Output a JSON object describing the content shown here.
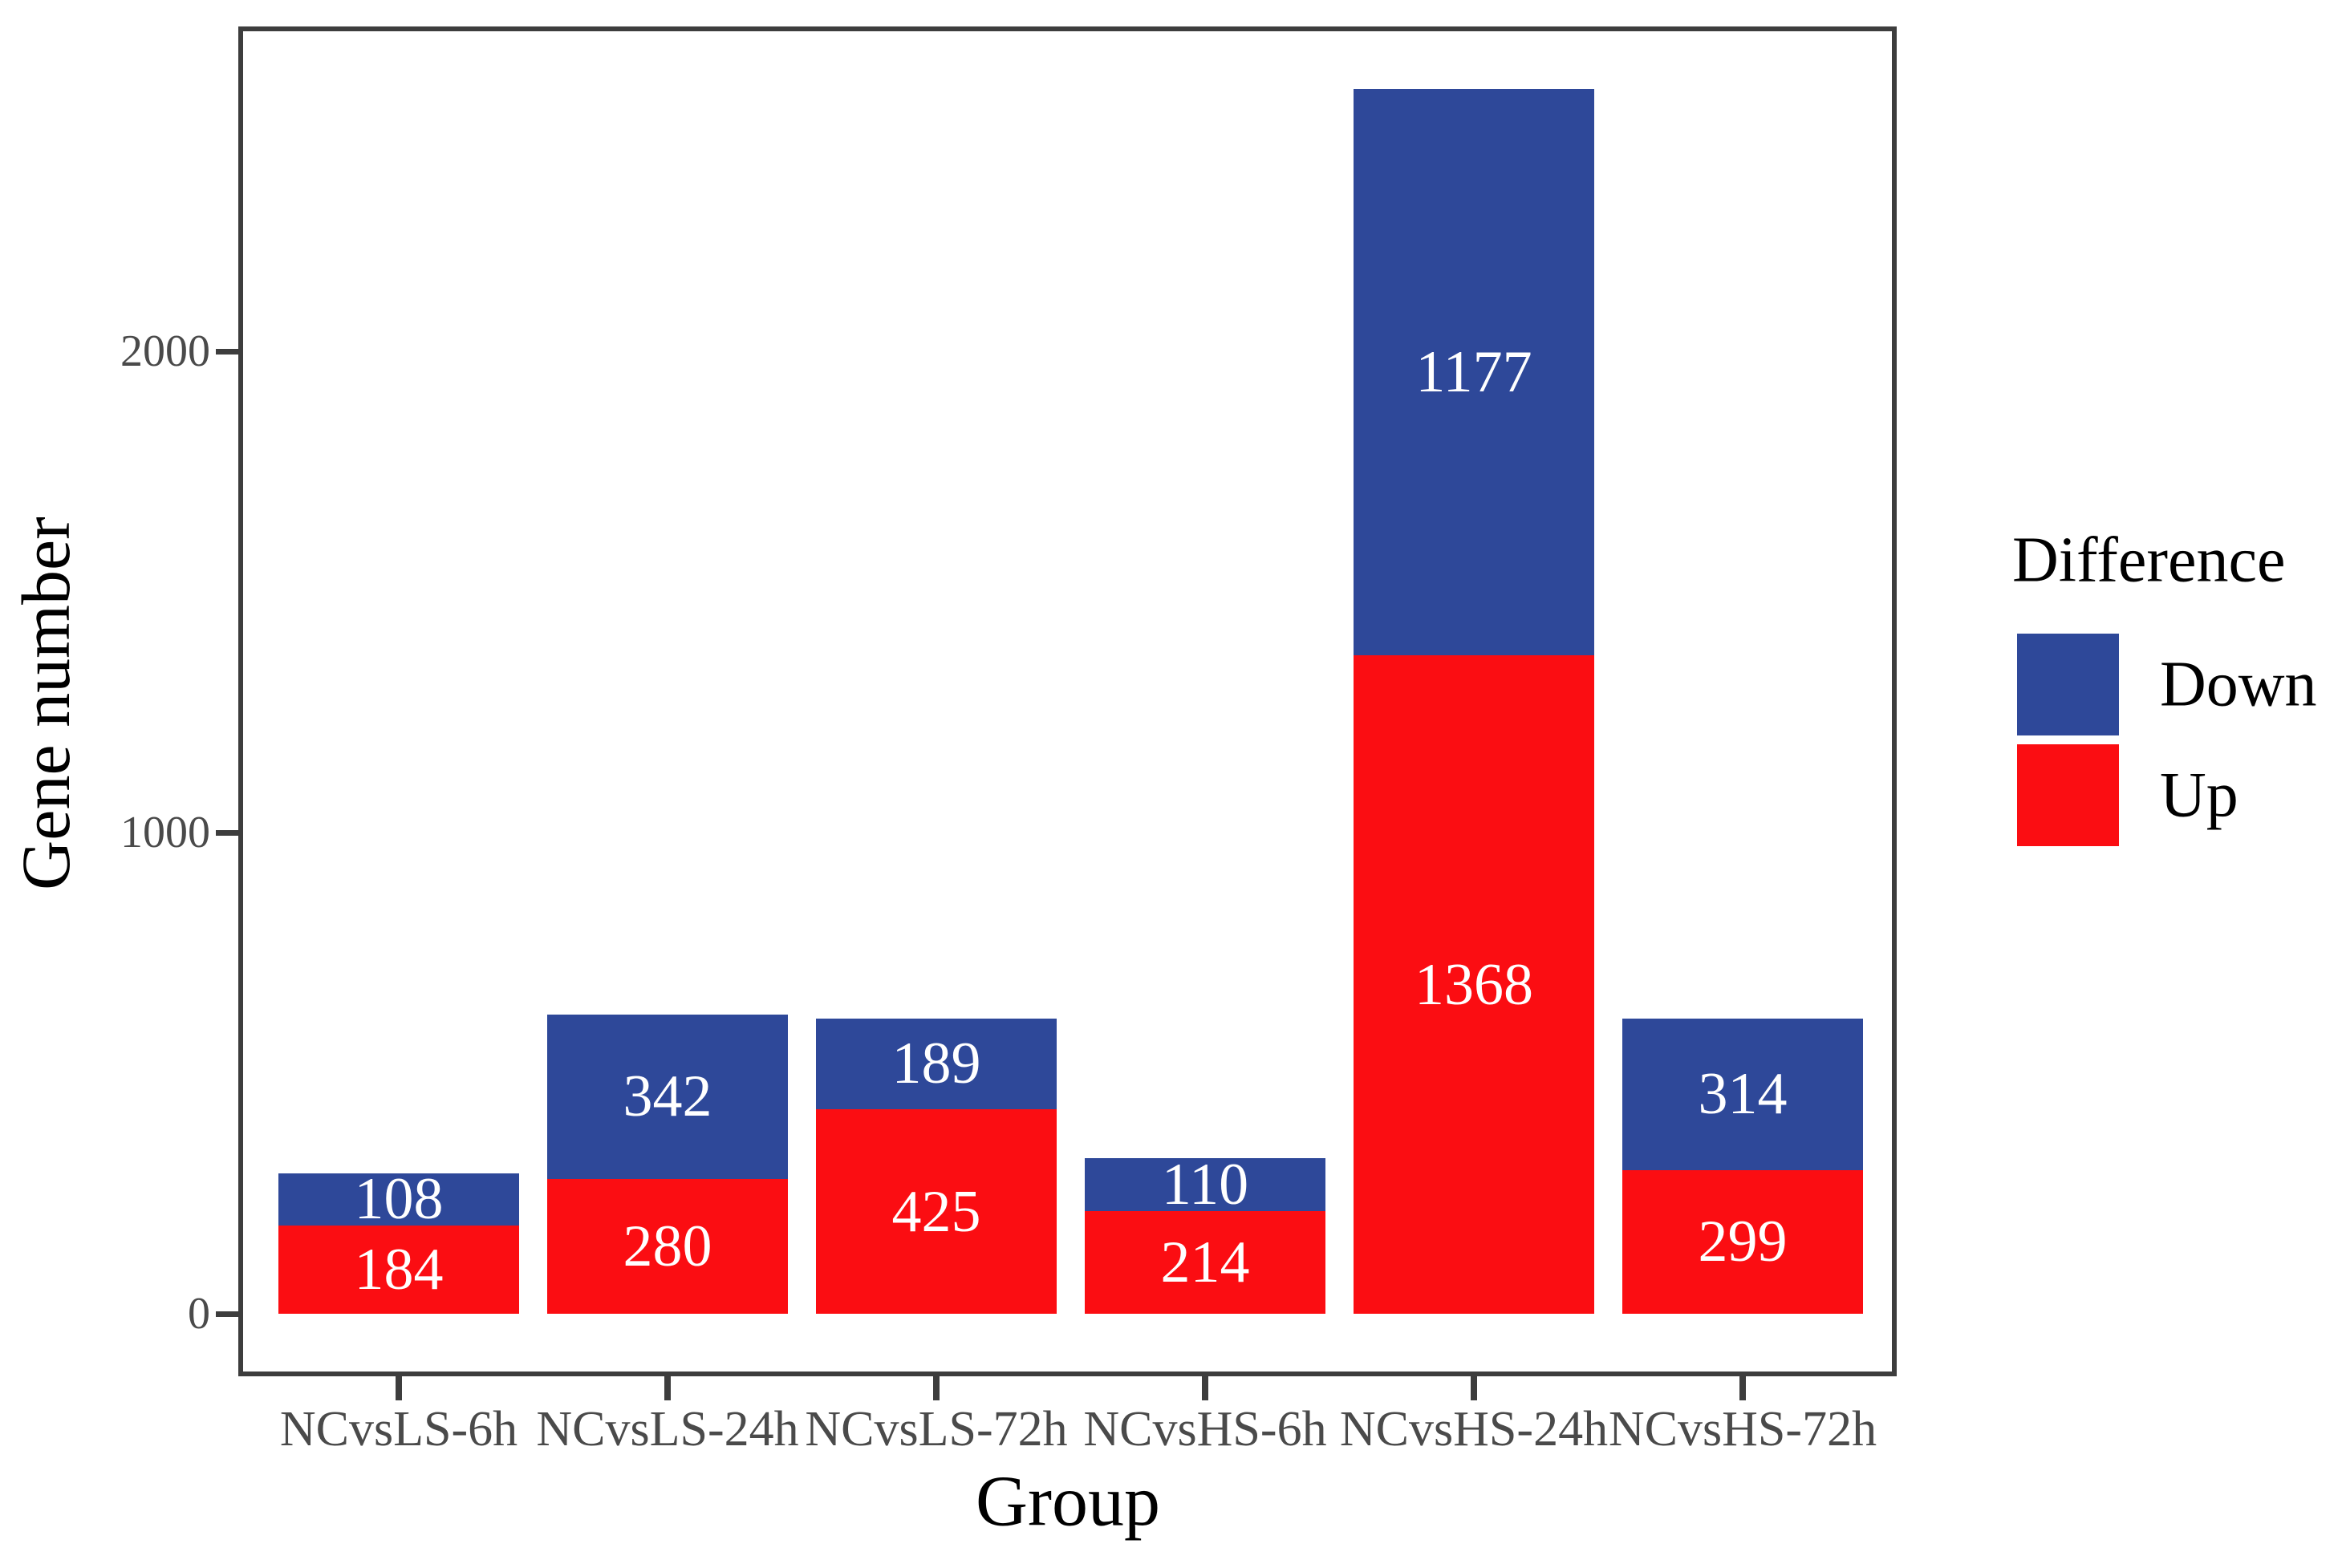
{
  "colors": {
    "down": "#2e4899",
    "up": "#fb0d12",
    "axis": "#3d3d3d",
    "tick_text": "#4a4a4a",
    "bar_label_text": "#ffffff",
    "background": "#ffffff"
  },
  "y_axis": {
    "title": "Gene number",
    "tick_labels": [
      "0",
      "1000",
      "2000"
    ],
    "tick_values": [
      0,
      1000,
      2000
    ]
  },
  "x_axis": {
    "title": "Group"
  },
  "legend": {
    "title": "Difference",
    "items": [
      {
        "label": "Down",
        "color": "#2e4899"
      },
      {
        "label": "Up",
        "color": "#fb0d12"
      }
    ]
  },
  "chart_data": {
    "type": "bar",
    "stacked": true,
    "title": "",
    "xlabel": "Group",
    "ylabel": "Gene number",
    "ylim": [
      0,
      2545
    ],
    "grid": false,
    "legend_position": "right",
    "categories": [
      "NCvsLS-6h",
      "NCvsLS-24h",
      "NCvsLS-72h",
      "NCvsHS-6h",
      "NCvsHS-24h",
      "NCvsHS-72h"
    ],
    "series": [
      {
        "name": "Up",
        "color": "#fb0d12",
        "values": [
          184,
          280,
          425,
          214,
          1368,
          299
        ]
      },
      {
        "name": "Down",
        "color": "#2e4899",
        "values": [
          108,
          342,
          189,
          110,
          1177,
          314
        ]
      }
    ],
    "totals": [
      292,
      622,
      614,
      324,
      2545,
      613
    ],
    "value_labels_shown": true
  }
}
